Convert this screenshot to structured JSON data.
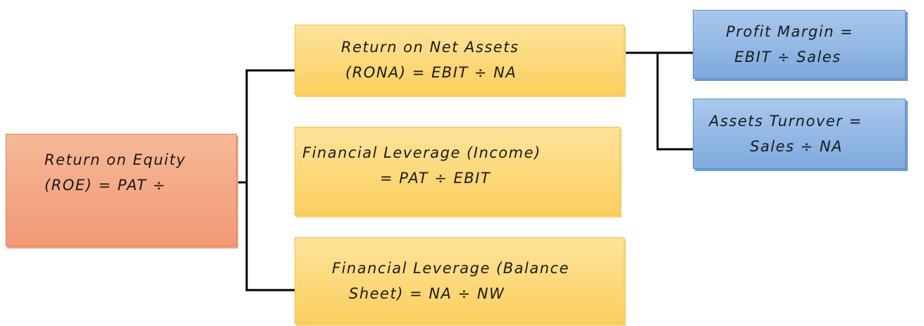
{
  "nodes": [
    {
      "lines": [
        "Return on Equity",
        "(ROE) = PAT ÷"
      ]
    },
    {
      "lines": [
        "Return on Net Assets",
        "(RONA) = EBIT ÷ NA"
      ]
    },
    {
      "lines": [
        "Financial Leverage (Income)",
        "= PAT ÷ EBIT"
      ]
    },
    {
      "lines": [
        "Financial Leverage (Balance",
        "Sheet) = NA ÷ NW"
      ]
    },
    {
      "lines": [
        "Profit Margin =",
        "EBIT ÷ Sales"
      ]
    },
    {
      "lines": [
        "Assets Turnover =",
        "Sales ÷ NA"
      ]
    }
  ]
}
